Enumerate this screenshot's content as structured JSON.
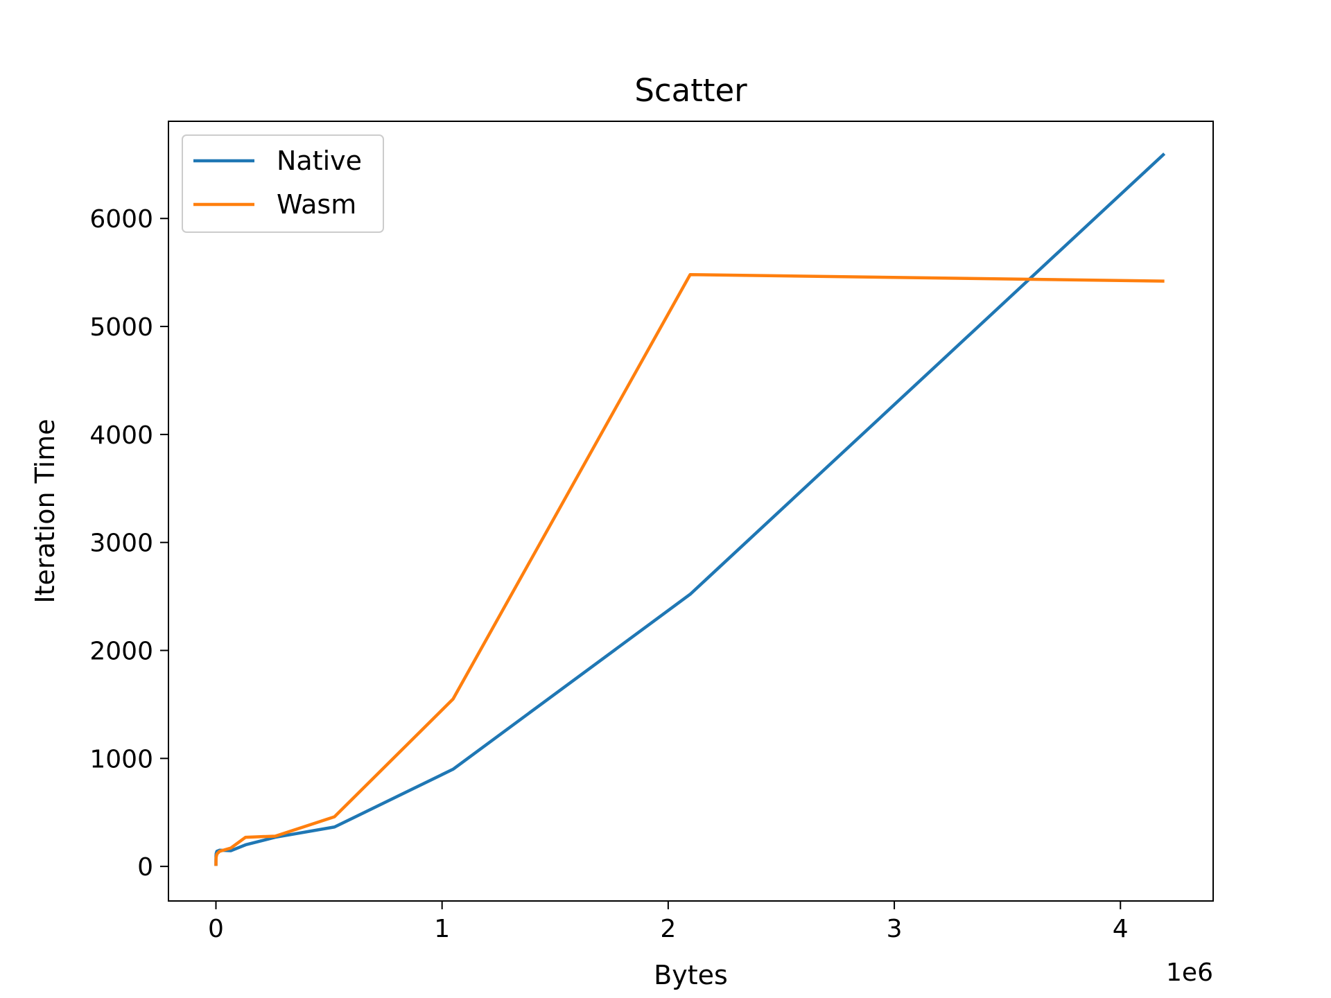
{
  "chart_data": {
    "type": "line",
    "title": "Scatter",
    "xlabel": "Bytes",
    "ylabel": "Iteration Time",
    "x_offset_label": "1e6",
    "xlim": [
      -0.21,
      4.41
    ],
    "ylim": [
      -320,
      6900
    ],
    "x_ticks": [
      0,
      1,
      2,
      3,
      4
    ],
    "x_tick_labels": [
      "0",
      "1",
      "2",
      "3",
      "4"
    ],
    "y_ticks": [
      0,
      1000,
      2000,
      3000,
      4000,
      5000,
      6000
    ],
    "y_tick_labels": [
      "0",
      "1000",
      "2000",
      "3000",
      "4000",
      "5000",
      "6000"
    ],
    "legend_position": "upper-left",
    "grid": false,
    "series": [
      {
        "name": "Native",
        "color": "#1f77b4",
        "x": [
          1e-06,
          4e-06,
          1.6e-05,
          6.4e-05,
          0.000256,
          0.001024,
          0.004096,
          0.016384,
          0.065536,
          0.131072,
          0.262144,
          0.524288,
          1.048576,
          2.097152,
          4.194304
        ],
        "y": [
          5,
          10,
          30,
          60,
          95,
          120,
          140,
          150,
          145,
          200,
          270,
          365,
          900,
          2520,
          6600
        ]
      },
      {
        "name": "Wasm",
        "color": "#ff7f0e",
        "x": [
          1e-06,
          4e-06,
          1.6e-05,
          6.4e-05,
          0.000256,
          0.001024,
          0.004096,
          0.016384,
          0.065536,
          0.131072,
          0.262144,
          0.524288,
          1.048576,
          2.097152,
          4.194304
        ],
        "y": [
          5,
          8,
          15,
          30,
          55,
          85,
          115,
          140,
          170,
          270,
          280,
          460,
          1550,
          5480,
          5420
        ]
      }
    ]
  }
}
